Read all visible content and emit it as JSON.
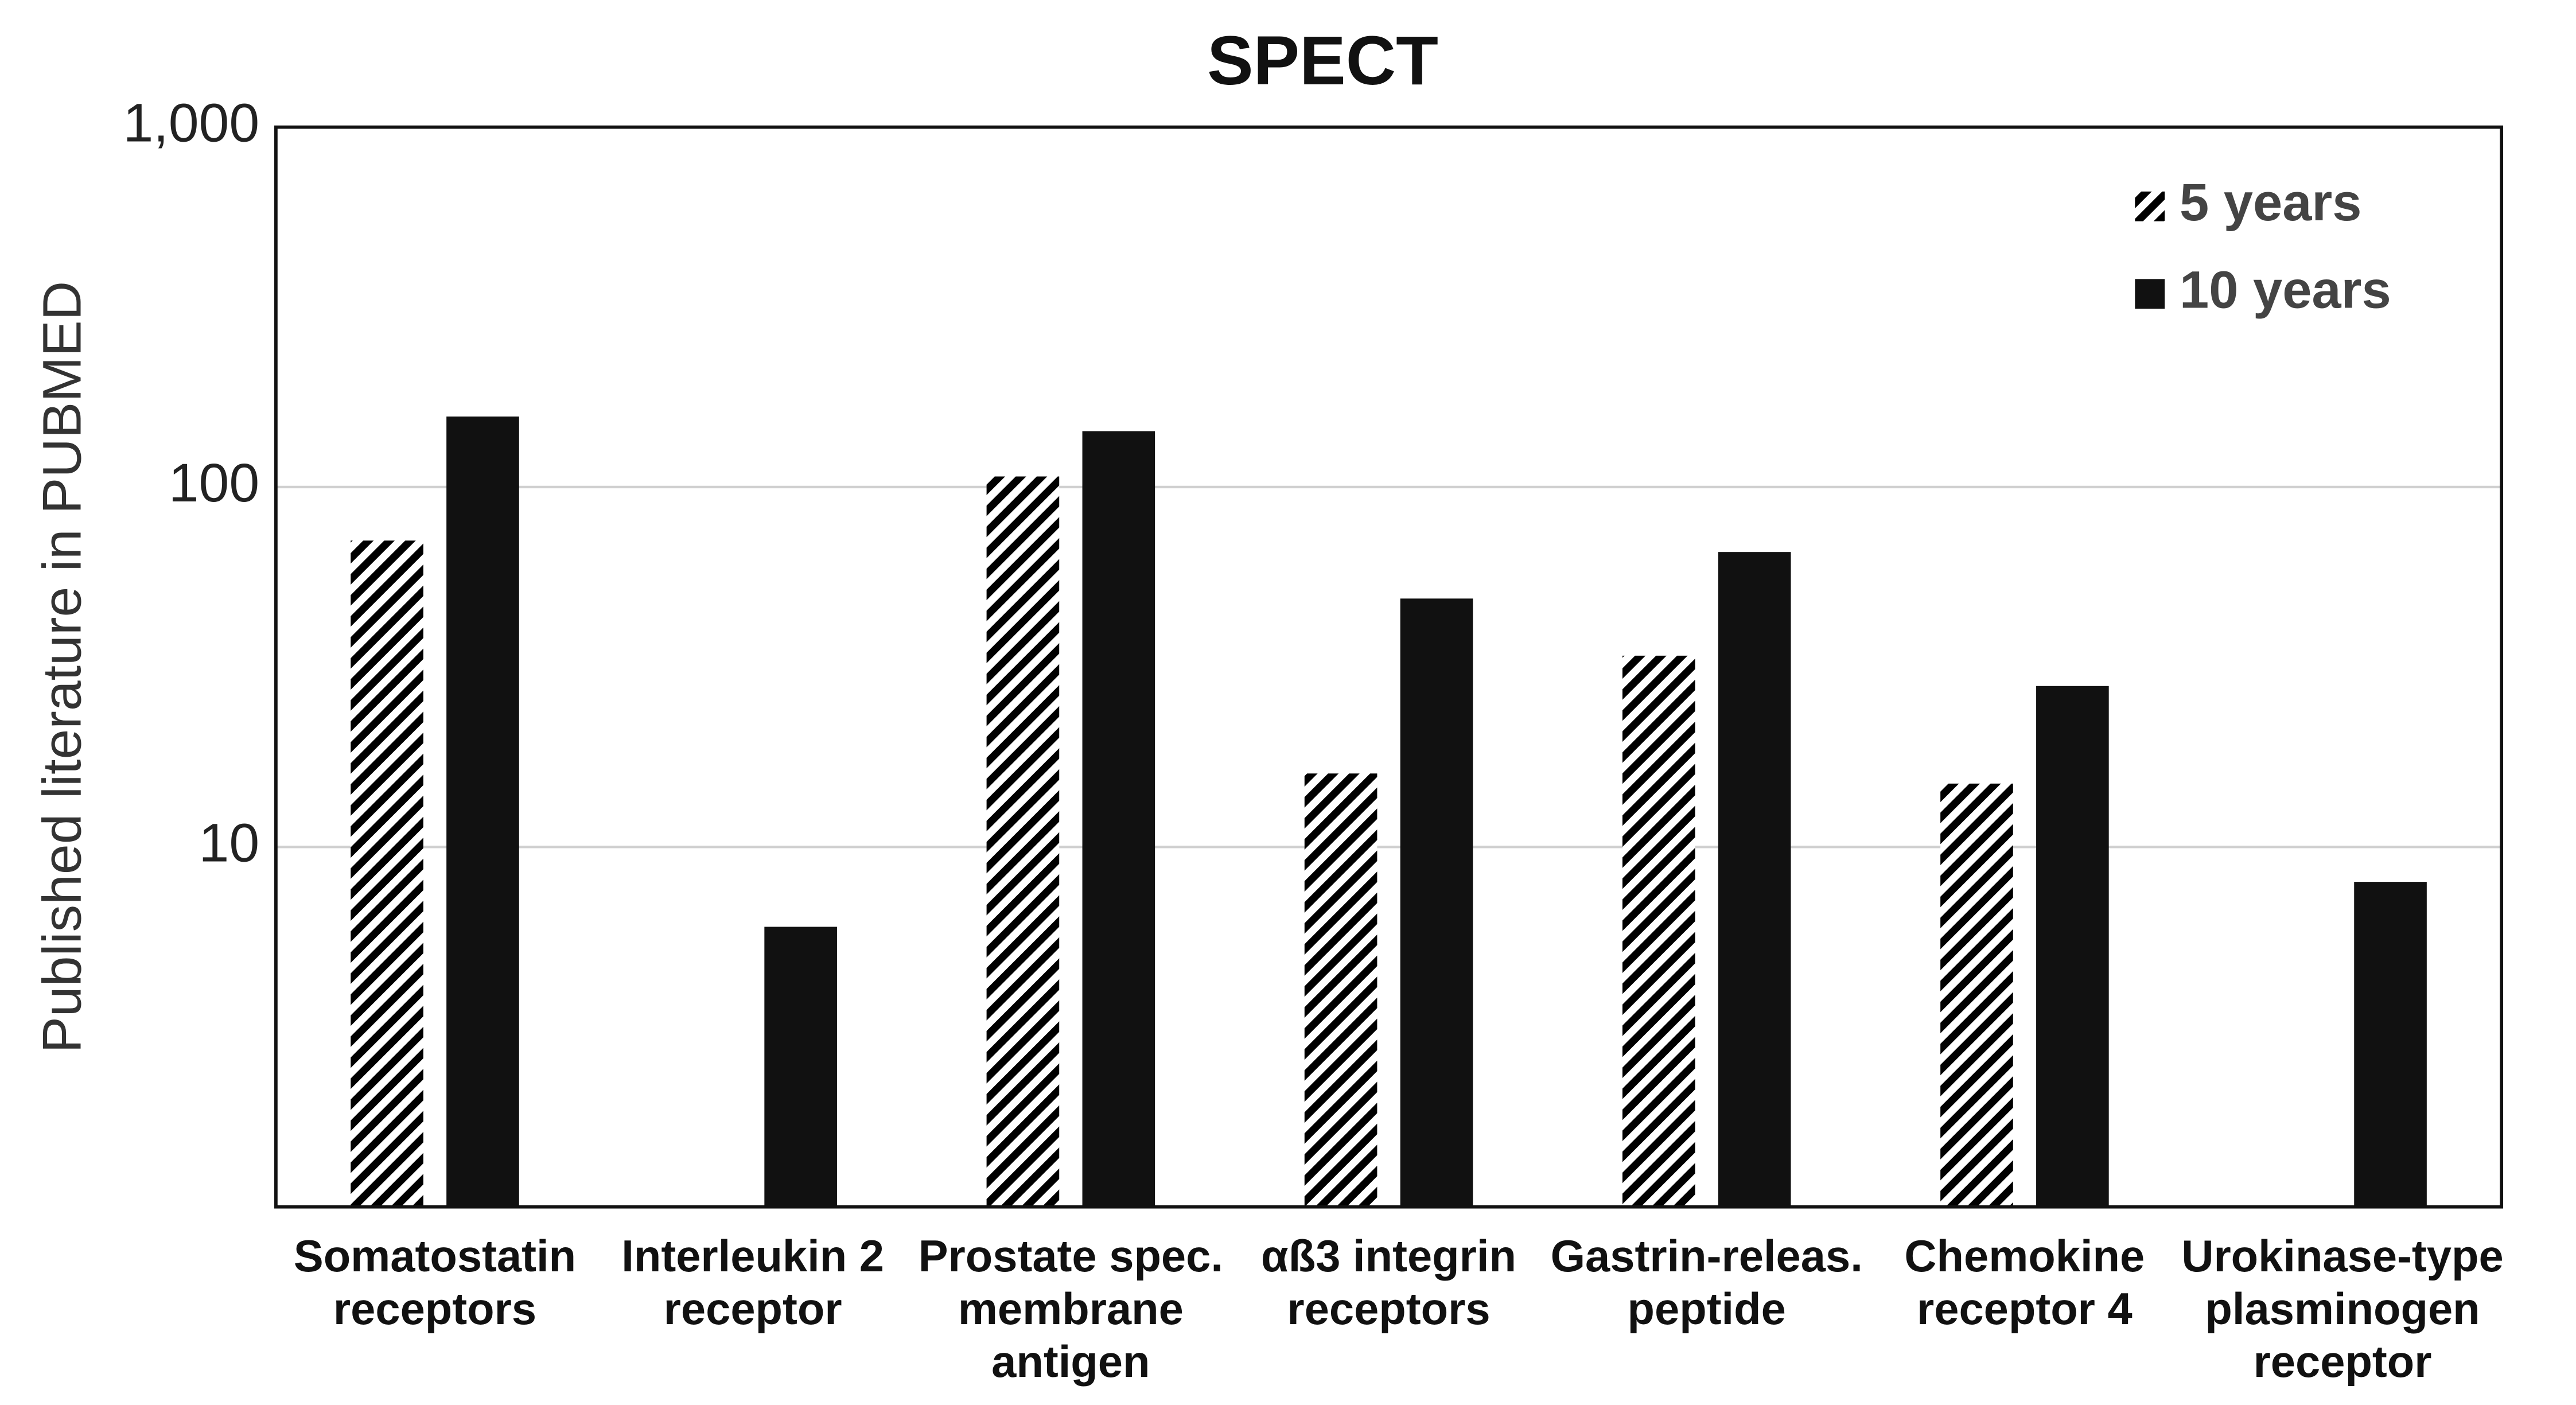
{
  "chart_data": {
    "type": "bar",
    "title": "SPECT",
    "y_label": "Published literature in PUBMED",
    "categories": [
      "Somatostatin\nreceptors",
      "Interleukin 2\nreceptor",
      "Prostate spec.\nmembrane\nantigen",
      "αß3 integrin\nreceptors",
      "Gastrin-releas.\npeptide",
      "Chemokine\nreceptor 4",
      "Urokinase-type\nplasminogen\nreceptor"
    ],
    "series": [
      {
        "name": "5 years",
        "color": "#000000",
        "pattern": "hatch",
        "values": [
          71,
          null,
          107,
          16,
          34,
          15,
          null
        ]
      },
      {
        "name": "10 years",
        "color": "#111111",
        "pattern": "solid",
        "values": [
          157,
          6,
          143,
          49,
          66,
          28,
          8
        ]
      }
    ],
    "log_scale": true,
    "ylim": [
      1,
      1000
    ],
    "yticks": [
      10,
      100,
      {
        "value": 1000,
        "label": "1,000"
      }
    ],
    "grid": true,
    "legend": "top-right"
  }
}
